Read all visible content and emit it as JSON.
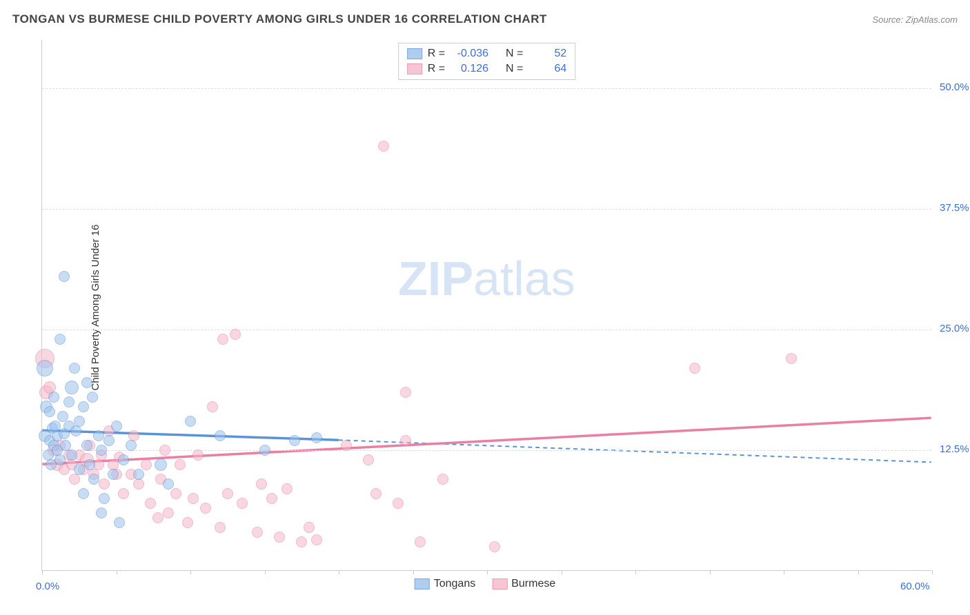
{
  "title": "TONGAN VS BURMESE CHILD POVERTY AMONG GIRLS UNDER 16 CORRELATION CHART",
  "source_label": "Source: ZipAtlas.com",
  "watermark": {
    "bold": "ZIP",
    "light": "atlas",
    "color": "#d6e4f5"
  },
  "axes": {
    "y_label": "Child Poverty Among Girls Under 16",
    "x_min": 0.0,
    "x_max": 60.0,
    "y_min": 0.0,
    "y_max": 55.0,
    "x_min_label": "0.0%",
    "x_max_label": "60.0%",
    "y_ticks": [
      {
        "v": 12.5,
        "label": "12.5%"
      },
      {
        "v": 25.0,
        "label": "25.0%"
      },
      {
        "v": 37.5,
        "label": "37.5%"
      },
      {
        "v": 50.0,
        "label": "50.0%"
      }
    ],
    "x_tick_positions": [
      0,
      5,
      10,
      15,
      20,
      25,
      30,
      35,
      40,
      45,
      50,
      55,
      60
    ],
    "grid_color": "#dddddd",
    "tick_label_color": "#3b6fd6"
  },
  "series": {
    "tongans": {
      "label": "Tongans",
      "fill": "#9cc3ec",
      "stroke": "#5a93d6",
      "opacity": 0.55,
      "stats": {
        "R": "-0.036",
        "N": "52"
      },
      "trend": {
        "x1": 0,
        "y1": 14.5,
        "x2": 20,
        "y2": 13.5,
        "x2_ext": 60,
        "y2_ext": 11.2
      },
      "points": [
        {
          "x": 0.2,
          "y": 14.0,
          "r": 9
        },
        {
          "x": 0.2,
          "y": 21.0,
          "r": 12
        },
        {
          "x": 0.3,
          "y": 17.0,
          "r": 9
        },
        {
          "x": 0.4,
          "y": 12.0,
          "r": 8
        },
        {
          "x": 0.5,
          "y": 13.5,
          "r": 8
        },
        {
          "x": 0.5,
          "y": 16.5,
          "r": 8
        },
        {
          "x": 0.6,
          "y": 11.0,
          "r": 8
        },
        {
          "x": 0.7,
          "y": 14.8,
          "r": 8
        },
        {
          "x": 0.8,
          "y": 13.0,
          "r": 8
        },
        {
          "x": 0.8,
          "y": 18.0,
          "r": 8
        },
        {
          "x": 0.9,
          "y": 15.0,
          "r": 8
        },
        {
          "x": 1.0,
          "y": 14.0,
          "r": 8
        },
        {
          "x": 1.0,
          "y": 12.5,
          "r": 8
        },
        {
          "x": 1.2,
          "y": 24.0,
          "r": 8
        },
        {
          "x": 1.2,
          "y": 11.5,
          "r": 8
        },
        {
          "x": 1.4,
          "y": 16.0,
          "r": 8
        },
        {
          "x": 1.5,
          "y": 14.2,
          "r": 8
        },
        {
          "x": 1.5,
          "y": 30.5,
          "r": 8
        },
        {
          "x": 1.6,
          "y": 13.0,
          "r": 8
        },
        {
          "x": 1.8,
          "y": 15.0,
          "r": 8
        },
        {
          "x": 1.8,
          "y": 17.5,
          "r": 8
        },
        {
          "x": 2.0,
          "y": 19.0,
          "r": 10
        },
        {
          "x": 2.0,
          "y": 12.0,
          "r": 8
        },
        {
          "x": 2.2,
          "y": 21.0,
          "r": 8
        },
        {
          "x": 2.3,
          "y": 14.5,
          "r": 8
        },
        {
          "x": 2.5,
          "y": 15.5,
          "r": 8
        },
        {
          "x": 2.5,
          "y": 10.5,
          "r": 8
        },
        {
          "x": 2.8,
          "y": 8.0,
          "r": 8
        },
        {
          "x": 2.8,
          "y": 17.0,
          "r": 8
        },
        {
          "x": 3.0,
          "y": 13.0,
          "r": 8
        },
        {
          "x": 3.0,
          "y": 19.5,
          "r": 8
        },
        {
          "x": 3.2,
          "y": 11.0,
          "r": 8
        },
        {
          "x": 3.4,
          "y": 18.0,
          "r": 8
        },
        {
          "x": 3.5,
          "y": 9.5,
          "r": 8
        },
        {
          "x": 3.8,
          "y": 14.0,
          "r": 8
        },
        {
          "x": 4.0,
          "y": 12.5,
          "r": 8
        },
        {
          "x": 4.0,
          "y": 6.0,
          "r": 8
        },
        {
          "x": 4.2,
          "y": 7.5,
          "r": 8
        },
        {
          "x": 4.5,
          "y": 13.5,
          "r": 8
        },
        {
          "x": 4.8,
          "y": 10.0,
          "r": 8
        },
        {
          "x": 5.0,
          "y": 15.0,
          "r": 8
        },
        {
          "x": 5.2,
          "y": 5.0,
          "r": 8
        },
        {
          "x": 5.5,
          "y": 11.5,
          "r": 8
        },
        {
          "x": 6.0,
          "y": 13.0,
          "r": 8
        },
        {
          "x": 6.5,
          "y": 10.0,
          "r": 8
        },
        {
          "x": 8.0,
          "y": 11.0,
          "r": 9
        },
        {
          "x": 8.5,
          "y": 9.0,
          "r": 8
        },
        {
          "x": 10.0,
          "y": 15.5,
          "r": 8
        },
        {
          "x": 12.0,
          "y": 14.0,
          "r": 8
        },
        {
          "x": 15.0,
          "y": 12.5,
          "r": 8
        },
        {
          "x": 17.0,
          "y": 13.5,
          "r": 8
        },
        {
          "x": 18.5,
          "y": 13.8,
          "r": 8
        }
      ]
    },
    "burmese": {
      "label": "Burmese",
      "fill": "#f5b8c9",
      "stroke": "#e97fa2",
      "opacity": 0.55,
      "stats": {
        "R": "0.126",
        "N": "64"
      },
      "trend": {
        "x1": 0,
        "y1": 11.0,
        "x2": 60,
        "y2": 15.8
      },
      "points": [
        {
          "x": 0.2,
          "y": 22.0,
          "r": 14
        },
        {
          "x": 0.3,
          "y": 18.5,
          "r": 10
        },
        {
          "x": 0.5,
          "y": 19.0,
          "r": 9
        },
        {
          "x": 0.8,
          "y": 12.5,
          "r": 9
        },
        {
          "x": 1.0,
          "y": 11.0,
          "r": 9
        },
        {
          "x": 1.2,
          "y": 13.0,
          "r": 8
        },
        {
          "x": 1.5,
          "y": 10.5,
          "r": 8
        },
        {
          "x": 1.8,
          "y": 12.0,
          "r": 8
        },
        {
          "x": 2.0,
          "y": 11.0,
          "r": 8
        },
        {
          "x": 2.2,
          "y": 9.5,
          "r": 8
        },
        {
          "x": 2.5,
          "y": 12.0,
          "r": 8
        },
        {
          "x": 2.8,
          "y": 10.5,
          "r": 8
        },
        {
          "x": 3.0,
          "y": 11.5,
          "r": 10
        },
        {
          "x": 3.2,
          "y": 13.0,
          "r": 8
        },
        {
          "x": 3.5,
          "y": 10.0,
          "r": 8
        },
        {
          "x": 3.8,
          "y": 11.0,
          "r": 8
        },
        {
          "x": 4.0,
          "y": 12.0,
          "r": 8
        },
        {
          "x": 4.2,
          "y": 9.0,
          "r": 8
        },
        {
          "x": 4.5,
          "y": 14.5,
          "r": 8
        },
        {
          "x": 4.8,
          "y": 11.0,
          "r": 8
        },
        {
          "x": 5.0,
          "y": 10.0,
          "r": 8
        },
        {
          "x": 5.2,
          "y": 11.8,
          "r": 8
        },
        {
          "x": 5.5,
          "y": 8.0,
          "r": 8
        },
        {
          "x": 6.0,
          "y": 10.0,
          "r": 8
        },
        {
          "x": 6.2,
          "y": 14.0,
          "r": 8
        },
        {
          "x": 6.5,
          "y": 9.0,
          "r": 8
        },
        {
          "x": 7.0,
          "y": 11.0,
          "r": 8
        },
        {
          "x": 7.3,
          "y": 7.0,
          "r": 8
        },
        {
          "x": 7.8,
          "y": 5.5,
          "r": 8
        },
        {
          "x": 8.0,
          "y": 9.5,
          "r": 8
        },
        {
          "x": 8.3,
          "y": 12.5,
          "r": 8
        },
        {
          "x": 8.5,
          "y": 6.0,
          "r": 8
        },
        {
          "x": 9.0,
          "y": 8.0,
          "r": 8
        },
        {
          "x": 9.3,
          "y": 11.0,
          "r": 8
        },
        {
          "x": 9.8,
          "y": 5.0,
          "r": 8
        },
        {
          "x": 10.2,
          "y": 7.5,
          "r": 8
        },
        {
          "x": 10.5,
          "y": 12.0,
          "r": 8
        },
        {
          "x": 11.0,
          "y": 6.5,
          "r": 8
        },
        {
          "x": 11.5,
          "y": 17.0,
          "r": 8
        },
        {
          "x": 12.0,
          "y": 4.5,
          "r": 8
        },
        {
          "x": 12.2,
          "y": 24.0,
          "r": 8
        },
        {
          "x": 12.5,
          "y": 8.0,
          "r": 8
        },
        {
          "x": 13.0,
          "y": 24.5,
          "r": 8
        },
        {
          "x": 13.5,
          "y": 7.0,
          "r": 8
        },
        {
          "x": 14.5,
          "y": 4.0,
          "r": 8
        },
        {
          "x": 14.8,
          "y": 9.0,
          "r": 8
        },
        {
          "x": 15.5,
          "y": 7.5,
          "r": 8
        },
        {
          "x": 16.0,
          "y": 3.5,
          "r": 8
        },
        {
          "x": 16.5,
          "y": 8.5,
          "r": 8
        },
        {
          "x": 17.5,
          "y": 3.0,
          "r": 8
        },
        {
          "x": 18.0,
          "y": 4.5,
          "r": 8
        },
        {
          "x": 18.5,
          "y": 3.2,
          "r": 8
        },
        {
          "x": 20.5,
          "y": 13.0,
          "r": 8
        },
        {
          "x": 22.0,
          "y": 11.5,
          "r": 8
        },
        {
          "x": 22.5,
          "y": 8.0,
          "r": 8
        },
        {
          "x": 23.0,
          "y": 44.0,
          "r": 8
        },
        {
          "x": 24.0,
          "y": 7.0,
          "r": 8
        },
        {
          "x": 24.5,
          "y": 18.5,
          "r": 8
        },
        {
          "x": 25.5,
          "y": 3.0,
          "r": 8
        },
        {
          "x": 27.0,
          "y": 9.5,
          "r": 8
        },
        {
          "x": 30.5,
          "y": 2.5,
          "r": 8
        },
        {
          "x": 44.0,
          "y": 21.0,
          "r": 8
        },
        {
          "x": 50.5,
          "y": 22.0,
          "r": 8
        },
        {
          "x": 24.5,
          "y": 13.5,
          "r": 8
        }
      ]
    }
  },
  "legend_top_labels": {
    "R": "R =",
    "N": "N ="
  },
  "legend_value_color": "#3b6fd6"
}
